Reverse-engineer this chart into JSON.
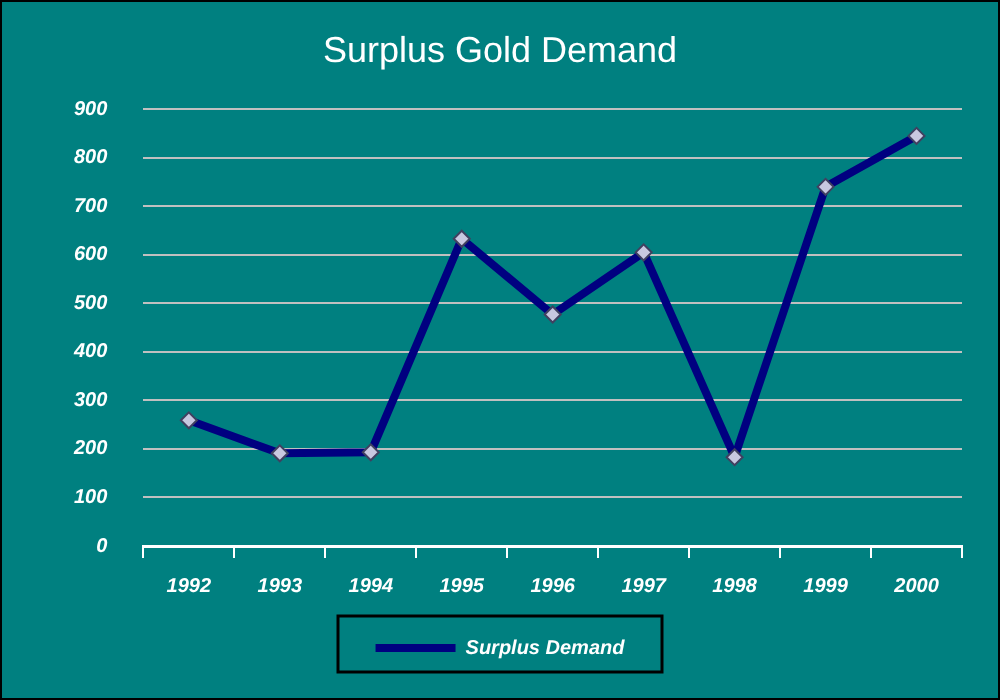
{
  "chart_data": {
    "type": "line",
    "title": "Surplus Gold Demand",
    "categories": [
      "1992",
      "1993",
      "1994",
      "1995",
      "1996",
      "1997",
      "1998",
      "1999",
      "2000"
    ],
    "series": [
      {
        "name": "Surplus Demand",
        "color": "#000080",
        "values": [
          259,
          191,
          193,
          633,
          477,
          605,
          183,
          740,
          845
        ]
      }
    ],
    "ylim": [
      0,
      900
    ],
    "yticks": [
      0,
      100,
      200,
      300,
      400,
      500,
      600,
      700,
      800,
      900
    ],
    "grid": "y",
    "legend": "bottom",
    "marker": "diamond",
    "line_style": "solid"
  }
}
